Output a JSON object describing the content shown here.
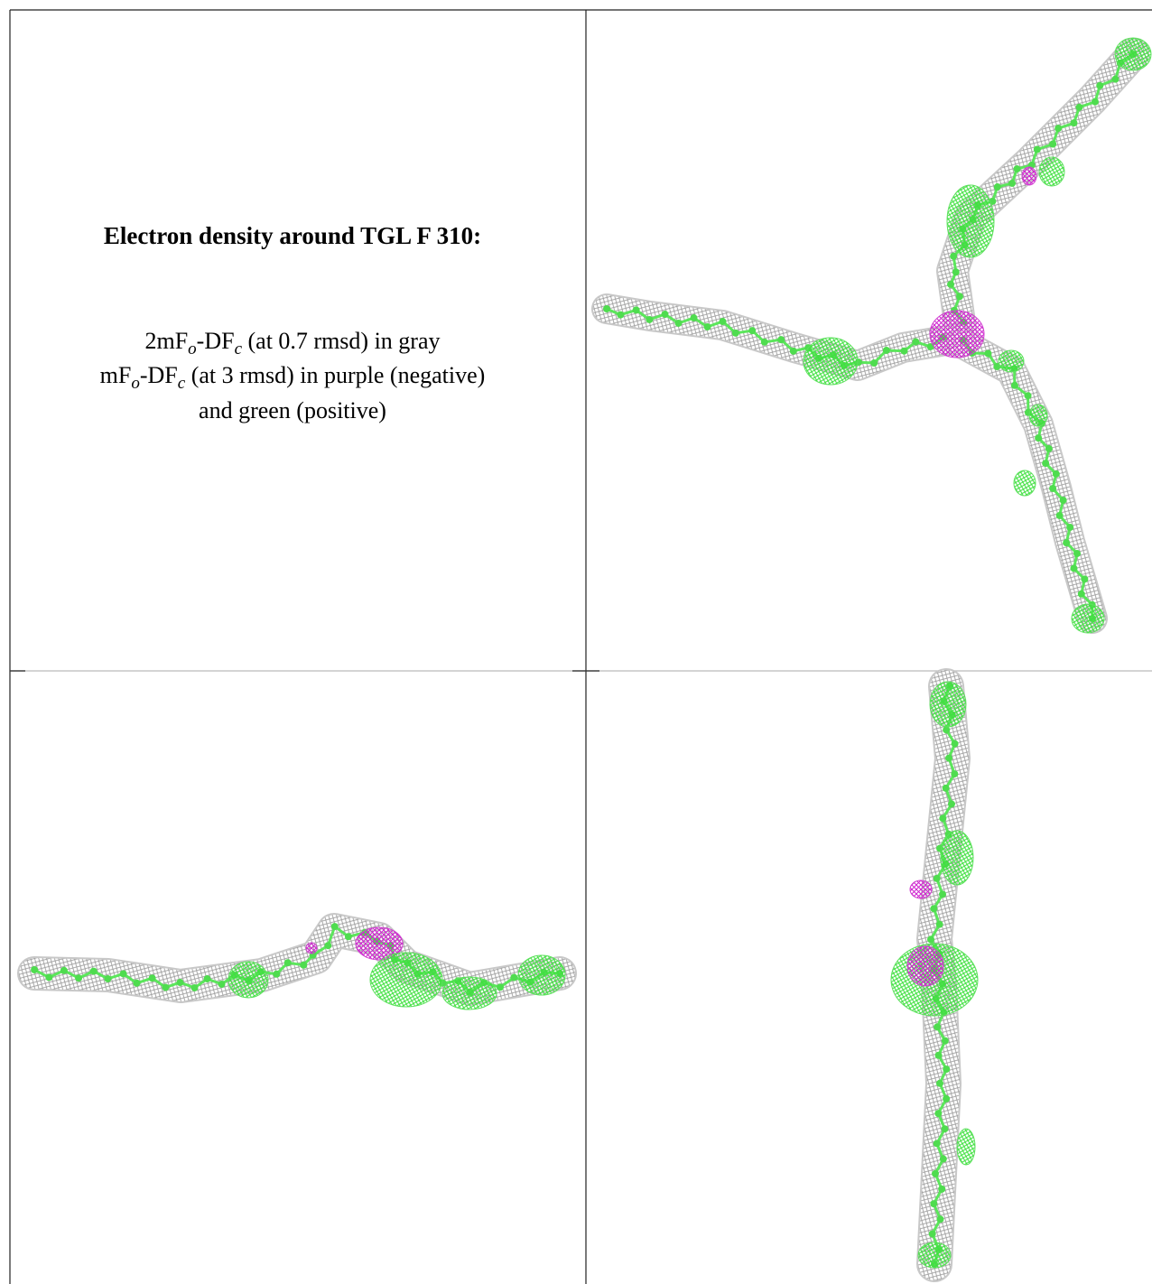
{
  "figure": {
    "title": "Electron density around TGL F 310:",
    "legend": [
      [
        "2mF",
        "o",
        "-DF",
        "c",
        " (at 0.7 rmsd) in gray"
      ],
      [
        "mF",
        "o",
        "-DF",
        "c",
        " (at 3 rmsd) in purple (negative)"
      ],
      [
        "and green (positive)"
      ]
    ]
  }
}
